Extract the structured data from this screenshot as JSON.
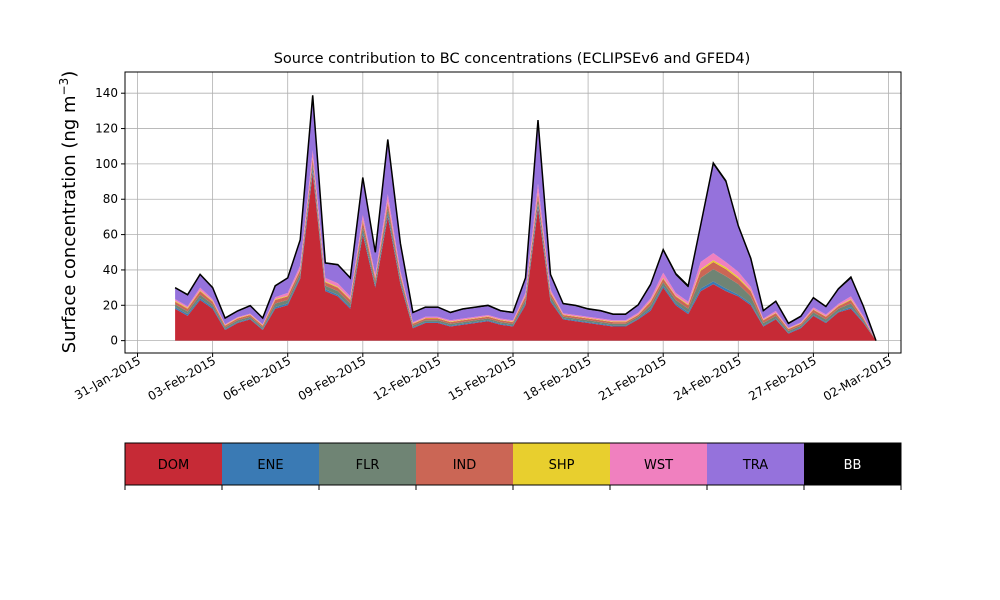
{
  "chart_data": {
    "type": "area",
    "stacked": true,
    "title": "Source contribution to BC concentrations (ECLIPSEv6 and GFED4)",
    "ylabel": "Surface concentration (ng m",
    "ylabel_superscript": "−3",
    "ylabel_close": ")",
    "xlabel": "",
    "ylim": [
      -7,
      152
    ],
    "yticks": [
      0,
      20,
      40,
      60,
      80,
      100,
      120,
      140
    ],
    "xlim": [
      "2015-01-30T12:00",
      "2015-03-02T12:00"
    ],
    "xticks": [
      "2015-01-31",
      "2015-02-03",
      "2015-02-06",
      "2015-02-09",
      "2015-02-12",
      "2015-02-15",
      "2015-02-18",
      "2015-02-21",
      "2015-02-24",
      "2015-02-27",
      "2015-03-02"
    ],
    "xtick_labels": [
      "31-Jan-2015",
      "03-Feb-2015",
      "06-Feb-2015",
      "09-Feb-2015",
      "12-Feb-2015",
      "15-Feb-2015",
      "18-Feb-2015",
      "21-Feb-2015",
      "24-Feb-2015",
      "27-Feb-2015",
      "02-Mar-2015"
    ],
    "grid": true,
    "legend_placement": "below-plot",
    "x": [
      "2015-02-01T12:00",
      "2015-02-02T00:00",
      "2015-02-02T12:00",
      "2015-02-03T00:00",
      "2015-02-03T12:00",
      "2015-02-04T00:00",
      "2015-02-04T12:00",
      "2015-02-05T00:00",
      "2015-02-05T12:00",
      "2015-02-06T00:00",
      "2015-02-06T12:00",
      "2015-02-07T00:00",
      "2015-02-07T12:00",
      "2015-02-08T00:00",
      "2015-02-08T12:00",
      "2015-02-09T00:00",
      "2015-02-09T12:00",
      "2015-02-10T00:00",
      "2015-02-10T12:00",
      "2015-02-11T00:00",
      "2015-02-11T12:00",
      "2015-02-12T00:00",
      "2015-02-12T12:00",
      "2015-02-13T00:00",
      "2015-02-13T12:00",
      "2015-02-14T00:00",
      "2015-02-14T12:00",
      "2015-02-15T00:00",
      "2015-02-15T12:00",
      "2015-02-16T00:00",
      "2015-02-16T12:00",
      "2015-02-17T00:00",
      "2015-02-17T12:00",
      "2015-02-18T00:00",
      "2015-02-18T12:00",
      "2015-02-19T00:00",
      "2015-02-19T12:00",
      "2015-02-20T00:00",
      "2015-02-20T12:00",
      "2015-02-21T00:00",
      "2015-02-21T12:00",
      "2015-02-22T00:00",
      "2015-02-22T12:00",
      "2015-02-23T00:00",
      "2015-02-23T12:00",
      "2015-02-24T00:00",
      "2015-02-24T12:00",
      "2015-02-25T00:00",
      "2015-02-25T12:00",
      "2015-02-26T00:00",
      "2015-02-26T12:00",
      "2015-02-27T00:00",
      "2015-02-27T12:00",
      "2015-02-28T00:00",
      "2015-02-28T12:00",
      "2015-03-01T00:00",
      "2015-03-01T12:00"
    ],
    "series": [
      {
        "name": "DOM",
        "color": "#c62a36",
        "values": [
          18,
          14,
          23,
          18,
          6,
          10,
          12,
          6,
          18,
          20,
          35,
          95,
          28,
          25,
          18,
          60,
          30,
          70,
          32,
          7,
          10,
          10,
          8,
          9,
          10,
          11,
          9,
          8,
          20,
          75,
          22,
          12,
          11,
          10,
          9,
          8,
          8,
          12,
          17,
          30,
          20,
          15,
          28,
          32,
          28,
          25,
          20,
          8,
          12,
          4,
          7,
          14,
          10,
          16,
          18,
          10,
          0
        ]
      },
      {
        "name": "ENE",
        "color": "#3a7ab4",
        "values": [
          1,
          1,
          1,
          1,
          0.5,
          0.5,
          0.5,
          0.5,
          1,
          1,
          1,
          2,
          1,
          1,
          1,
          1.5,
          1,
          2,
          1,
          0.5,
          0.5,
          0.5,
          0.5,
          0.5,
          0.5,
          0.5,
          0.5,
          0.5,
          1,
          2,
          1,
          0.5,
          0.5,
          0.5,
          0.5,
          0.5,
          0.5,
          0.5,
          1,
          1,
          1,
          1,
          1.5,
          1.5,
          1.5,
          1,
          1,
          0.5,
          0.5,
          0.5,
          0.5,
          0.5,
          0.5,
          0.5,
          1,
          0.5,
          0
        ]
      },
      {
        "name": "FLR",
        "color": "#6f8474",
        "values": [
          1.5,
          1.5,
          2,
          1.5,
          1,
          1,
          1,
          1,
          2,
          2,
          2,
          3,
          2,
          2,
          2,
          3,
          2,
          3,
          2,
          1,
          1,
          1,
          1,
          1,
          1,
          1,
          1,
          1,
          2,
          3,
          2,
          1,
          1,
          1,
          1,
          1,
          1,
          1,
          2,
          2,
          2,
          2,
          6,
          7,
          7,
          6,
          4,
          1.5,
          1.5,
          1,
          1,
          1.5,
          1.5,
          1.5,
          2,
          1,
          0
        ]
      },
      {
        "name": "IND",
        "color": "#cb6655",
        "values": [
          1.5,
          1.5,
          2,
          1.5,
          1,
          1,
          1,
          1,
          2,
          2,
          2,
          3,
          2,
          2,
          2,
          3,
          2,
          3,
          2,
          1,
          1,
          1,
          1,
          1,
          1,
          1,
          1,
          1,
          2,
          3,
          2,
          1,
          1,
          1,
          1,
          1,
          1,
          1,
          2,
          2,
          2,
          2,
          4,
          4,
          4,
          3,
          3,
          1.5,
          1.5,
          1,
          1,
          1.5,
          1.5,
          1.5,
          2,
          1,
          0
        ]
      },
      {
        "name": "SHP",
        "color": "#e8cf2e",
        "values": [
          0.5,
          0.5,
          0.5,
          0.5,
          0.3,
          0.3,
          0.3,
          0.3,
          0.5,
          0.5,
          0.5,
          0.8,
          0.5,
          0.5,
          0.5,
          0.8,
          0.5,
          0.8,
          0.5,
          0.3,
          0.3,
          0.3,
          0.3,
          0.3,
          0.3,
          0.3,
          0.3,
          0.3,
          0.5,
          0.8,
          0.5,
          0.3,
          0.3,
          0.3,
          0.3,
          0.3,
          0.3,
          0.3,
          0.5,
          0.5,
          0.5,
          0.5,
          1,
          1,
          1,
          1,
          0.5,
          0.3,
          0.3,
          0.3,
          0.3,
          0.3,
          0.3,
          0.3,
          0.5,
          0.3,
          0
        ]
      },
      {
        "name": "WST",
        "color": "#f080bf",
        "values": [
          1,
          1,
          1.5,
          1,
          0.5,
          0.5,
          0.5,
          0.5,
          1,
          1.5,
          2,
          4,
          2,
          2,
          1.5,
          3,
          2,
          4,
          2,
          0.7,
          0.7,
          0.7,
          0.7,
          0.7,
          0.7,
          0.7,
          0.7,
          0.7,
          1.5,
          5,
          1.5,
          0.7,
          0.7,
          0.7,
          0.7,
          0.7,
          0.7,
          1,
          1.5,
          3,
          1.5,
          1.5,
          4,
          4,
          3,
          3,
          2,
          0.7,
          1,
          0.5,
          0.5,
          1,
          1,
          1,
          1.5,
          1,
          0
        ]
      },
      {
        "name": "TRA",
        "color": "#9572dc",
        "values": [
          6,
          6,
          7,
          6,
          3,
          3,
          4,
          3,
          6,
          8,
          14,
          30,
          8,
          10,
          10,
          20,
          12,
          30,
          15,
          5,
          5,
          5,
          4,
          5,
          5,
          5,
          4,
          4,
          8,
          35,
          8,
          5,
          5,
          4,
          4,
          3,
          3,
          4,
          7,
          12,
          10,
          8,
          20,
          50,
          45,
          25,
          15,
          4,
          5,
          2,
          3,
          5,
          4,
          8,
          10,
          5,
          0
        ]
      },
      {
        "name": "BB",
        "color": "#000000",
        "values": [
          0.5,
          0.5,
          0.5,
          0.5,
          0.5,
          0.5,
          0.5,
          0.5,
          0.5,
          0.5,
          0.5,
          1,
          0.5,
          0.5,
          0.5,
          1,
          0.5,
          1,
          0.5,
          0.5,
          0.5,
          0.5,
          0.5,
          0.5,
          0.5,
          0.5,
          0.5,
          0.5,
          0.5,
          1,
          0.5,
          0.5,
          0.5,
          0.5,
          0.5,
          0.5,
          0.5,
          0.5,
          1,
          1,
          1,
          1,
          1,
          1,
          1,
          1,
          1,
          0.5,
          0.5,
          0.5,
          0.5,
          0.5,
          0.5,
          0.5,
          1,
          0.5,
          0
        ]
      }
    ]
  },
  "legend": {
    "items": [
      {
        "label": "DOM",
        "color": "#c62a36",
        "text_color": "#000000"
      },
      {
        "label": "ENE",
        "color": "#3a7ab4",
        "text_color": "#000000"
      },
      {
        "label": "FLR",
        "color": "#6f8474",
        "text_color": "#000000"
      },
      {
        "label": "IND",
        "color": "#cb6655",
        "text_color": "#000000"
      },
      {
        "label": "SHP",
        "color": "#e8cf2e",
        "text_color": "#000000"
      },
      {
        "label": "WST",
        "color": "#f080bf",
        "text_color": "#000000"
      },
      {
        "label": "TRA",
        "color": "#9572dc",
        "text_color": "#000000"
      },
      {
        "label": "BB",
        "color": "#000000",
        "text_color": "#ffffff"
      }
    ]
  }
}
